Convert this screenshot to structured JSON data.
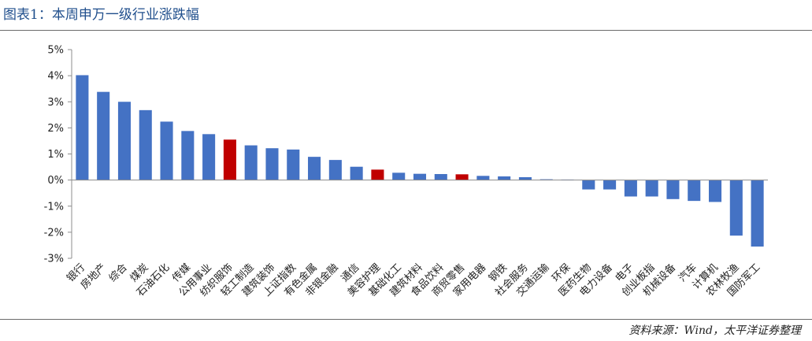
{
  "header": {
    "title": "图表1：本周申万一级行业涨跌幅"
  },
  "footer": {
    "source": "资料来源：Wind，太平洋证券整理"
  },
  "colors": {
    "default": "#4472c4",
    "highlight": "#c00000",
    "axis": "#8c8c8c",
    "title": "#1f4e8c"
  },
  "chart_data": {
    "type": "bar",
    "title": "",
    "xlabel": "",
    "ylabel": "",
    "ylim": [
      -3,
      5
    ],
    "yticks": [
      5,
      4,
      3,
      2,
      1,
      0,
      -1,
      -2,
      -3
    ],
    "ytick_labels": [
      "5%",
      "4%",
      "3%",
      "2%",
      "1%",
      "0%",
      "-1%",
      "-2%",
      "-3%"
    ],
    "grid": false,
    "legend": "none",
    "categories": [
      "银行",
      "房地产",
      "综合",
      "煤炭",
      "石油石化",
      "传媒",
      "公用事业",
      "纺织服饰",
      "轻工制造",
      "建筑装饰",
      "上证指数",
      "有色金属",
      "非银金融",
      "通信",
      "美容护理",
      "基础化工",
      "建筑材料",
      "食品饮料",
      "商贸零售",
      "家用电器",
      "钢铁",
      "社会服务",
      "交通运输",
      "环保",
      "医药生物",
      "电力设备",
      "电子",
      "创业板指",
      "机械设备",
      "汽车",
      "计算机",
      "农林牧渔",
      "国防军工"
    ],
    "values": [
      4.02,
      3.38,
      3.0,
      2.68,
      2.24,
      1.88,
      1.76,
      1.55,
      1.33,
      1.22,
      1.17,
      0.89,
      0.77,
      0.51,
      0.4,
      0.28,
      0.24,
      0.23,
      0.22,
      0.16,
      0.14,
      0.11,
      0.03,
      0.02,
      -0.36,
      -0.36,
      -0.63,
      -0.63,
      -0.73,
      -0.8,
      -0.84,
      -2.13,
      -2.55
    ],
    "highlighted": [
      "纺织服饰",
      "美容护理",
      "商贸零售"
    ]
  }
}
